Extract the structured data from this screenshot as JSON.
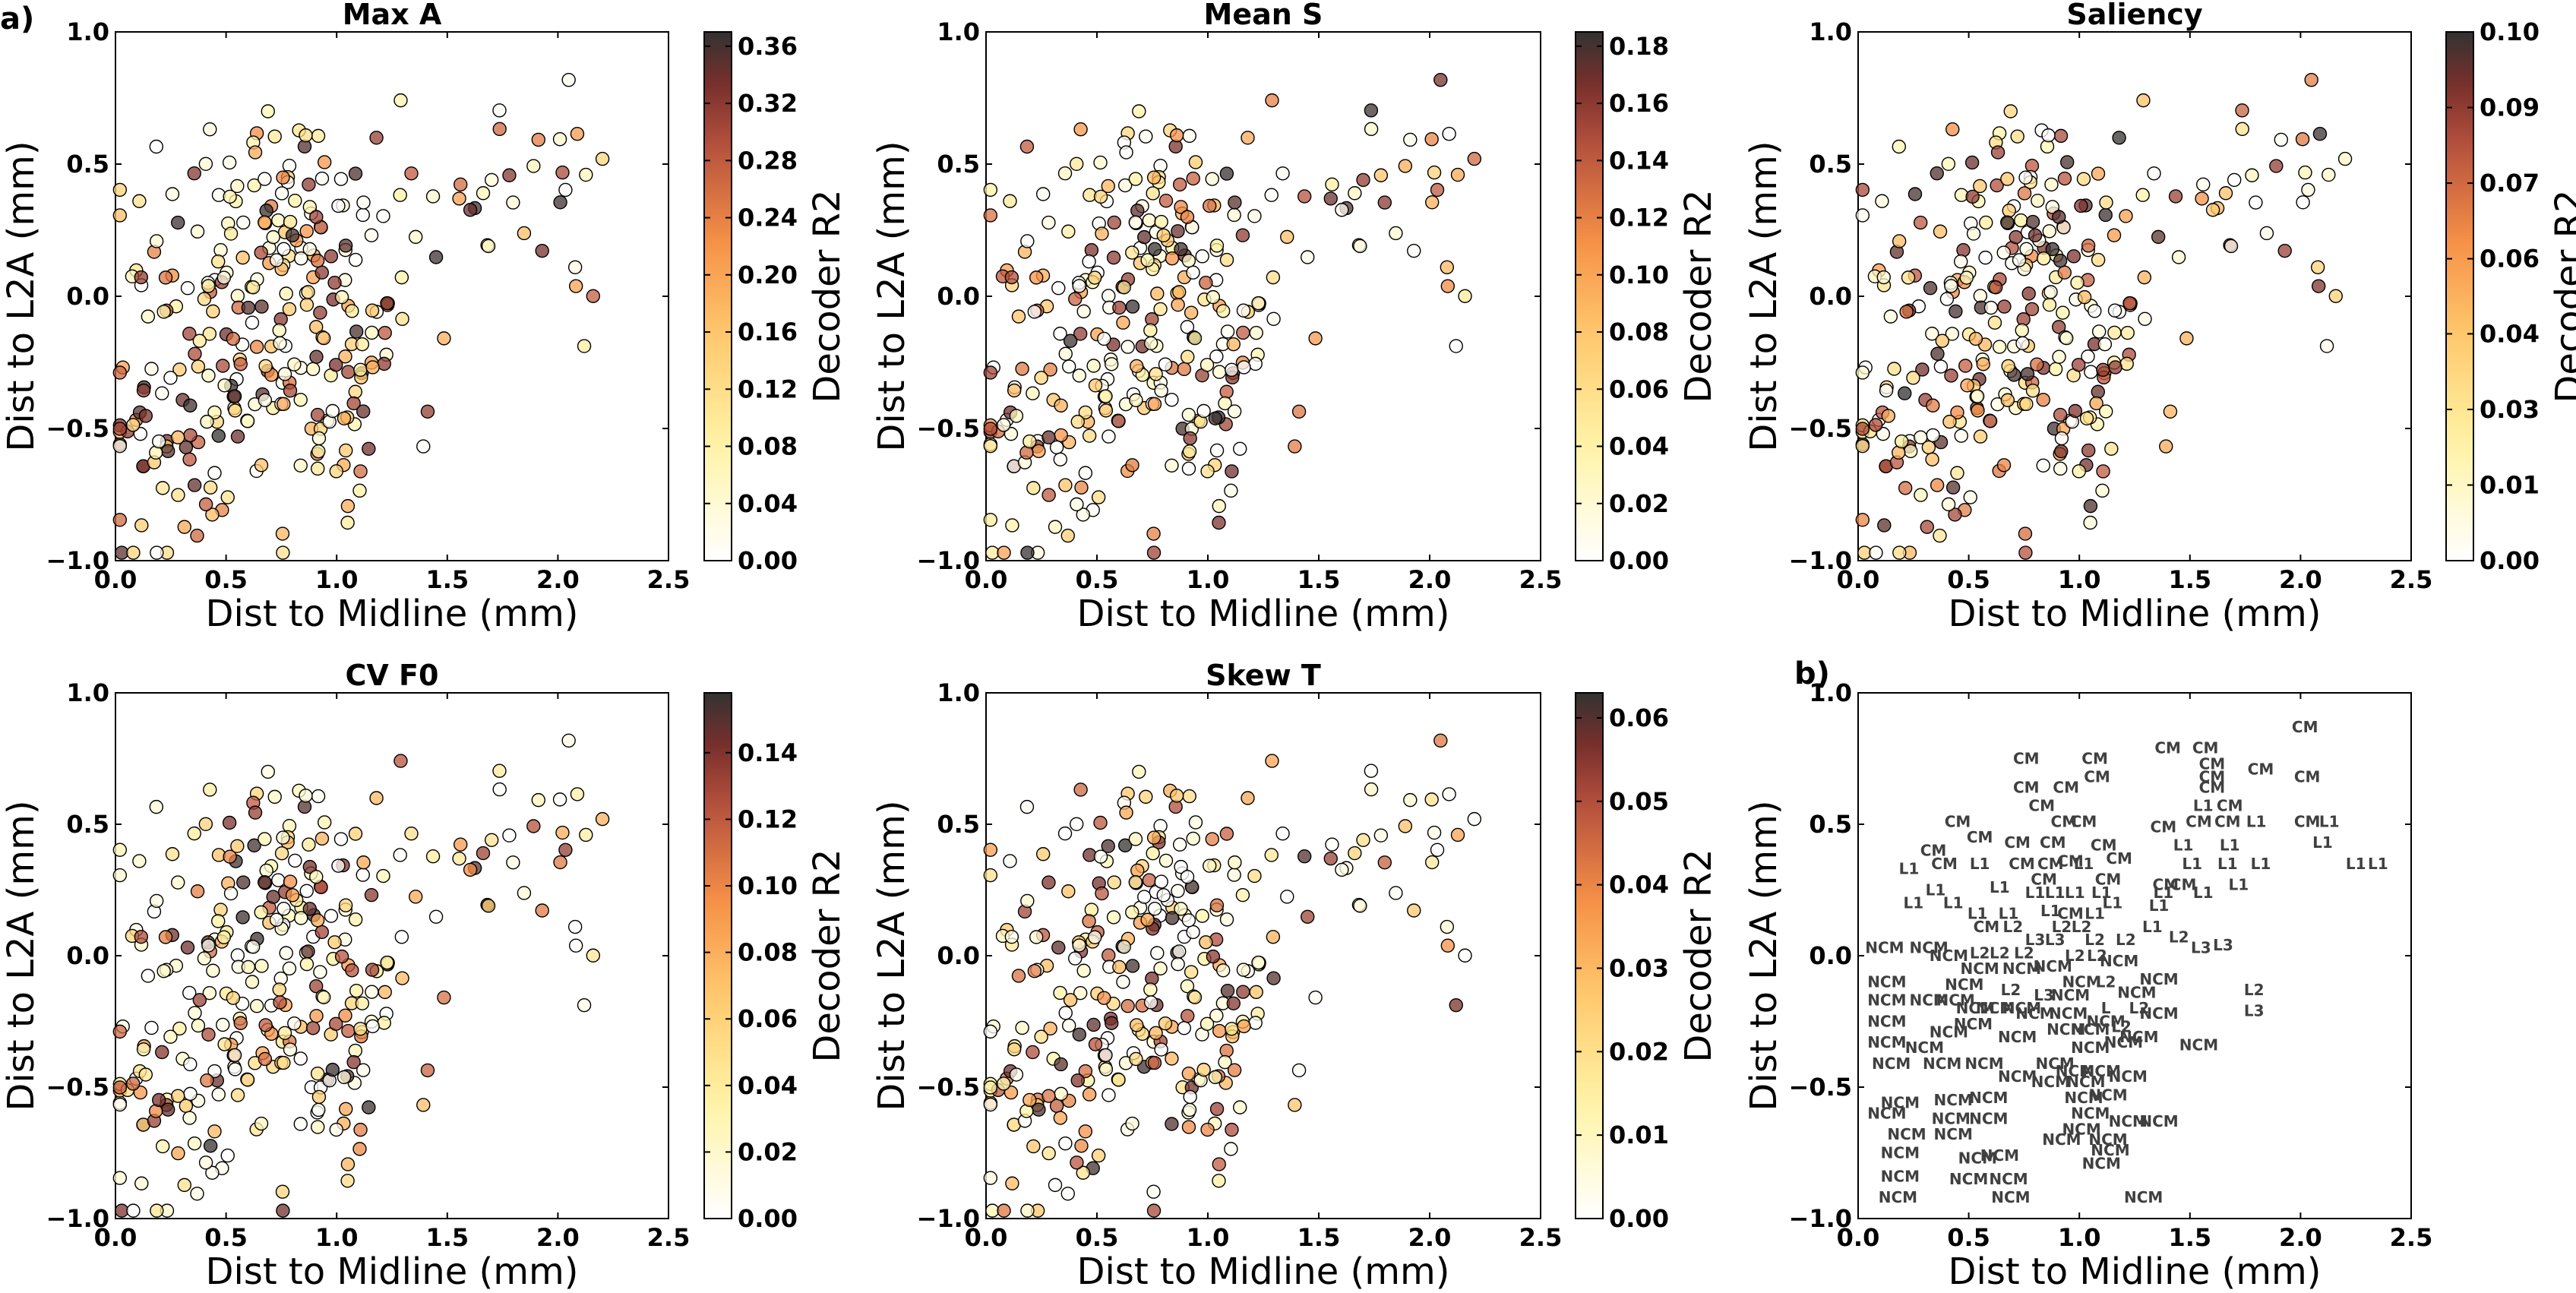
{
  "figure": {
    "panel_labels": [
      "a)",
      "b)"
    ]
  },
  "chart_data": [
    {
      "type": "scatter",
      "title": "Max A",
      "xlabel": "Dist to Midline (mm)",
      "ylabel": "Dist to L2A (mm)",
      "xlim": [
        0.0,
        2.5
      ],
      "ylim": [
        -1.0,
        1.0
      ],
      "xticks": [
        "0.0",
        "0.5",
        "1.0",
        "1.5",
        "2.0",
        "2.5"
      ],
      "yticks": [
        "−1.0",
        "−0.5",
        "0.0",
        "0.5",
        "1.0"
      ],
      "colorbar": {
        "label": "Decoder R2",
        "min": 0.0,
        "max": 0.37,
        "ticks": [
          "0.00",
          "0.04",
          "0.08",
          "0.12",
          "0.16",
          "0.20",
          "0.24",
          "0.28",
          "0.32",
          "0.36"
        ],
        "tick_values": [
          0,
          0.04,
          0.08,
          0.12,
          0.16,
          0.2,
          0.24,
          0.28,
          0.32,
          0.36
        ],
        "colormap": "afmhot_r"
      },
      "seed": 11
    },
    {
      "type": "scatter",
      "title": "Mean S",
      "xlabel": "Dist to Midline (mm)",
      "ylabel": "Dist to L2A (mm)",
      "xlim": [
        0.0,
        2.5
      ],
      "ylim": [
        -1.0,
        1.0
      ],
      "xticks": [
        "0.0",
        "0.5",
        "1.0",
        "1.5",
        "2.0",
        "2.5"
      ],
      "yticks": [
        "−1.0",
        "−0.5",
        "0.0",
        "0.5",
        "1.0"
      ],
      "colorbar": {
        "label": "Decoder R2",
        "min": 0.0,
        "max": 0.185,
        "ticks": [
          "0.00",
          "0.02",
          "0.04",
          "0.06",
          "0.08",
          "0.10",
          "0.12",
          "0.14",
          "0.16",
          "0.18"
        ],
        "tick_values": [
          0,
          0.02,
          0.04,
          0.06,
          0.08,
          0.1,
          0.12,
          0.14,
          0.16,
          0.18
        ],
        "colormap": "afmhot_r"
      },
      "seed": 23
    },
    {
      "type": "scatter",
      "title": "Saliency",
      "xlabel": "Dist to Midline (mm)",
      "ylabel": "Dist to L2A (mm)",
      "xlim": [
        0.0,
        2.5
      ],
      "ylim": [
        -1.0,
        1.0
      ],
      "xticks": [
        "0.0",
        "0.5",
        "1.0",
        "1.5",
        "2.0",
        "2.5"
      ],
      "yticks": [
        "−1.0",
        "−0.5",
        "0.0",
        "0.5",
        "1.0"
      ],
      "colorbar": {
        "label": "Decoder R2",
        "min": 0.0,
        "max": 0.1,
        "ticks": [
          "0.00",
          "0.01",
          "0.03",
          "0.04",
          "0.06",
          "0.07",
          "0.09",
          "0.10"
        ],
        "tick_values": [
          0,
          0.0143,
          0.0286,
          0.0429,
          0.0571,
          0.0714,
          0.0857,
          0.1
        ],
        "colormap": "afmhot_r"
      },
      "seed": 37
    },
    {
      "type": "scatter",
      "title": "CV F0",
      "xlabel": "Dist to Midline (mm)",
      "ylabel": "Dist to L2A (mm)",
      "xlim": [
        0.0,
        2.5
      ],
      "ylim": [
        -1.0,
        1.0
      ],
      "xticks": [
        "0.0",
        "0.5",
        "1.0",
        "1.5",
        "2.0",
        "2.5"
      ],
      "yticks": [
        "−1.0",
        "−0.5",
        "0.0",
        "0.5",
        "1.0"
      ],
      "colorbar": {
        "label": "Decoder R2",
        "min": 0.0,
        "max": 0.158,
        "ticks": [
          "0.00",
          "0.02",
          "0.04",
          "0.06",
          "0.08",
          "0.10",
          "0.12",
          "0.14"
        ],
        "tick_values": [
          0,
          0.02,
          0.04,
          0.06,
          0.08,
          0.1,
          0.12,
          0.14
        ],
        "colormap": "afmhot_r"
      },
      "seed": 41
    },
    {
      "type": "scatter",
      "title": "Skew T",
      "xlabel": "Dist to Midline (mm)",
      "ylabel": "Dist to L2A (mm)",
      "xlim": [
        0.0,
        2.5
      ],
      "ylim": [
        -1.0,
        1.0
      ],
      "xticks": [
        "0.0",
        "0.5",
        "1.0",
        "1.5",
        "2.0",
        "2.5"
      ],
      "yticks": [
        "−1.0",
        "−0.5",
        "0.0",
        "0.5",
        "1.0"
      ],
      "colorbar": {
        "label": "Decoder R2",
        "min": 0.0,
        "max": 0.063,
        "ticks": [
          "0.00",
          "0.01",
          "0.02",
          "0.03",
          "0.04",
          "0.05",
          "0.06"
        ],
        "tick_values": [
          0,
          0.01,
          0.02,
          0.03,
          0.04,
          0.05,
          0.06
        ],
        "colormap": "afmhot_r"
      },
      "seed": 59
    },
    {
      "type": "scatter",
      "title": "",
      "xlabel": "Dist to Midline (mm)",
      "ylabel": "Dist to L2A (mm)",
      "xlim": [
        0.0,
        2.5
      ],
      "ylim": [
        -1.0,
        1.0
      ],
      "xticks": [
        "0.0",
        "0.5",
        "1.0",
        "1.5",
        "2.0",
        "2.5"
      ],
      "yticks": [
        "−1.0",
        "−0.5",
        "0.0",
        "0.5",
        "1.0"
      ],
      "labels": [
        {
          "x": 2.02,
          "y": 0.85,
          "t": "CM"
        },
        {
          "x": 1.4,
          "y": 0.77,
          "t": "CM"
        },
        {
          "x": 1.57,
          "y": 0.77,
          "t": "CM"
        },
        {
          "x": 0.76,
          "y": 0.73,
          "t": "CM"
        },
        {
          "x": 1.07,
          "y": 0.73,
          "t": "CM"
        },
        {
          "x": 1.6,
          "y": 0.71,
          "t": "CM"
        },
        {
          "x": 1.82,
          "y": 0.69,
          "t": "CM"
        },
        {
          "x": 1.08,
          "y": 0.66,
          "t": "CM"
        },
        {
          "x": 1.6,
          "y": 0.66,
          "t": "CM"
        },
        {
          "x": 2.03,
          "y": 0.66,
          "t": "CM"
        },
        {
          "x": 0.76,
          "y": 0.62,
          "t": "CM"
        },
        {
          "x": 0.94,
          "y": 0.62,
          "t": "CM"
        },
        {
          "x": 1.6,
          "y": 0.62,
          "t": "CM"
        },
        {
          "x": 1.56,
          "y": 0.55,
          "t": "L1"
        },
        {
          "x": 1.68,
          "y": 0.55,
          "t": "CM"
        },
        {
          "x": 0.83,
          "y": 0.55,
          "t": "CM"
        },
        {
          "x": 0.93,
          "y": 0.49,
          "t": "CM"
        },
        {
          "x": 1.02,
          "y": 0.49,
          "t": "CM"
        },
        {
          "x": 0.45,
          "y": 0.49,
          "t": "CM"
        },
        {
          "x": 1.38,
          "y": 0.47,
          "t": "CM"
        },
        {
          "x": 1.54,
          "y": 0.49,
          "t": "CM"
        },
        {
          "x": 1.67,
          "y": 0.49,
          "t": "CM"
        },
        {
          "x": 1.8,
          "y": 0.49,
          "t": "L1"
        },
        {
          "x": 2.03,
          "y": 0.49,
          "t": "CM"
        },
        {
          "x": 2.13,
          "y": 0.49,
          "t": "L1"
        },
        {
          "x": 0.34,
          "y": 0.38,
          "t": "CM"
        },
        {
          "x": 0.72,
          "y": 0.41,
          "t": "CM"
        },
        {
          "x": 0.88,
          "y": 0.41,
          "t": "CM"
        },
        {
          "x": 0.55,
          "y": 0.43,
          "t": "CM"
        },
        {
          "x": 1.11,
          "y": 0.4,
          "t": "CM"
        },
        {
          "x": 1.47,
          "y": 0.4,
          "t": "L1"
        },
        {
          "x": 1.68,
          "y": 0.4,
          "t": "L1"
        },
        {
          "x": 2.1,
          "y": 0.41,
          "t": "L1"
        },
        {
          "x": 0.39,
          "y": 0.33,
          "t": "CM"
        },
        {
          "x": 0.55,
          "y": 0.33,
          "t": "L1"
        },
        {
          "x": 0.74,
          "y": 0.33,
          "t": "CM"
        },
        {
          "x": 0.87,
          "y": 0.33,
          "t": "CM"
        },
        {
          "x": 0.96,
          "y": 0.34,
          "t": "CM"
        },
        {
          "x": 1.02,
          "y": 0.33,
          "t": "L1"
        },
        {
          "x": 1.18,
          "y": 0.35,
          "t": "CM"
        },
        {
          "x": 1.51,
          "y": 0.33,
          "t": "L1"
        },
        {
          "x": 1.67,
          "y": 0.33,
          "t": "L1"
        },
        {
          "x": 1.82,
          "y": 0.33,
          "t": "L1"
        },
        {
          "x": 2.25,
          "y": 0.33,
          "t": "L1"
        },
        {
          "x": 2.35,
          "y": 0.33,
          "t": "L1"
        },
        {
          "x": 0.23,
          "y": 0.31,
          "t": "L1"
        },
        {
          "x": 0.84,
          "y": 0.27,
          "t": "CM"
        },
        {
          "x": 1.13,
          "y": 0.27,
          "t": "CM"
        },
        {
          "x": 1.39,
          "y": 0.25,
          "t": "CM"
        },
        {
          "x": 1.47,
          "y": 0.25,
          "t": "CM"
        },
        {
          "x": 1.72,
          "y": 0.25,
          "t": "L1"
        },
        {
          "x": 0.35,
          "y": 0.23,
          "t": "L1"
        },
        {
          "x": 0.64,
          "y": 0.24,
          "t": "L1"
        },
        {
          "x": 0.8,
          "y": 0.22,
          "t": "L1"
        },
        {
          "x": 0.89,
          "y": 0.22,
          "t": "L1"
        },
        {
          "x": 0.98,
          "y": 0.22,
          "t": "L1"
        },
        {
          "x": 1.1,
          "y": 0.22,
          "t": "L1"
        },
        {
          "x": 1.38,
          "y": 0.22,
          "t": "L1"
        },
        {
          "x": 1.56,
          "y": 0.22,
          "t": "L1"
        },
        {
          "x": 0.25,
          "y": 0.18,
          "t": "L1"
        },
        {
          "x": 0.43,
          "y": 0.18,
          "t": "L1"
        },
        {
          "x": 1.15,
          "y": 0.18,
          "t": "L1"
        },
        {
          "x": 1.36,
          "y": 0.17,
          "t": "L1"
        },
        {
          "x": 0.54,
          "y": 0.14,
          "t": "L1"
        },
        {
          "x": 0.68,
          "y": 0.14,
          "t": "L1"
        },
        {
          "x": 0.87,
          "y": 0.15,
          "t": "L1"
        },
        {
          "x": 0.96,
          "y": 0.14,
          "t": "CM"
        },
        {
          "x": 1.07,
          "y": 0.14,
          "t": "L1"
        },
        {
          "x": 1.33,
          "y": 0.09,
          "t": "L1"
        },
        {
          "x": 0.58,
          "y": 0.09,
          "t": "CM"
        },
        {
          "x": 0.7,
          "y": 0.09,
          "t": "L2"
        },
        {
          "x": 0.92,
          "y": 0.09,
          "t": "L2"
        },
        {
          "x": 1.01,
          "y": 0.09,
          "t": "L2"
        },
        {
          "x": 1.45,
          "y": 0.05,
          "t": "L2"
        },
        {
          "x": 0.8,
          "y": 0.04,
          "t": "L3"
        },
        {
          "x": 0.89,
          "y": 0.04,
          "t": "L3"
        },
        {
          "x": 1.07,
          "y": 0.04,
          "t": "L2"
        },
        {
          "x": 1.21,
          "y": 0.04,
          "t": "L2"
        },
        {
          "x": 1.55,
          "y": 0.01,
          "t": "L3"
        },
        {
          "x": 1.65,
          "y": 0.02,
          "t": "L3"
        },
        {
          "x": 0.12,
          "y": 0.01,
          "t": "NCM"
        },
        {
          "x": 0.32,
          "y": 0.01,
          "t": "NCM"
        },
        {
          "x": 0.55,
          "y": -0.01,
          "t": "L2"
        },
        {
          "x": 0.64,
          "y": -0.01,
          "t": "L2"
        },
        {
          "x": 0.75,
          "y": -0.01,
          "t": "L2"
        },
        {
          "x": 0.98,
          "y": -0.02,
          "t": "L2"
        },
        {
          "x": 1.08,
          "y": -0.02,
          "t": "L2"
        },
        {
          "x": 0.41,
          "y": -0.02,
          "t": "NCM"
        },
        {
          "x": 0.88,
          "y": -0.06,
          "t": "NCM"
        },
        {
          "x": 1.18,
          "y": -0.04,
          "t": "NCM"
        },
        {
          "x": 0.55,
          "y": -0.07,
          "t": "NCM"
        },
        {
          "x": 0.74,
          "y": -0.07,
          "t": "NCM"
        },
        {
          "x": 0.13,
          "y": -0.12,
          "t": "NCM"
        },
        {
          "x": 0.48,
          "y": -0.13,
          "t": "NCM"
        },
        {
          "x": 1.01,
          "y": -0.12,
          "t": "NCM"
        },
        {
          "x": 1.12,
          "y": -0.12,
          "t": "L2"
        },
        {
          "x": 1.36,
          "y": -0.11,
          "t": "NCM"
        },
        {
          "x": 1.79,
          "y": -0.15,
          "t": "L2"
        },
        {
          "x": 0.69,
          "y": -0.15,
          "t": "L2"
        },
        {
          "x": 0.84,
          "y": -0.17,
          "t": "L3"
        },
        {
          "x": 0.96,
          "y": -0.17,
          "t": "NCM"
        },
        {
          "x": 1.26,
          "y": -0.16,
          "t": "NCM"
        },
        {
          "x": 0.13,
          "y": -0.19,
          "t": "NCM"
        },
        {
          "x": 0.32,
          "y": -0.19,
          "t": "NCM"
        },
        {
          "x": 0.44,
          "y": -0.19,
          "t": "NCM"
        },
        {
          "x": 0.53,
          "y": -0.22,
          "t": "NCM"
        },
        {
          "x": 0.62,
          "y": -0.22,
          "t": "NCM"
        },
        {
          "x": 0.74,
          "y": -0.22,
          "t": "NCM"
        },
        {
          "x": 0.8,
          "y": -0.24,
          "t": "NCM"
        },
        {
          "x": 1.12,
          "y": -0.22,
          "t": "L"
        },
        {
          "x": 1.27,
          "y": -0.22,
          "t": "L2"
        },
        {
          "x": 1.36,
          "y": -0.24,
          "t": "NCM"
        },
        {
          "x": 1.79,
          "y": -0.23,
          "t": "L3"
        },
        {
          "x": 0.95,
          "y": -0.24,
          "t": "NCM"
        },
        {
          "x": 1.12,
          "y": -0.27,
          "t": "NCM"
        },
        {
          "x": 0.13,
          "y": -0.27,
          "t": "NCM"
        },
        {
          "x": 0.52,
          "y": -0.28,
          "t": "NCM"
        },
        {
          "x": 0.94,
          "y": -0.3,
          "t": "NCM"
        },
        {
          "x": 1.05,
          "y": -0.3,
          "t": "NCM"
        },
        {
          "x": 1.19,
          "y": -0.29,
          "t": "L2"
        },
        {
          "x": 0.41,
          "y": -0.31,
          "t": "NCM"
        },
        {
          "x": 0.72,
          "y": -0.33,
          "t": "NCM"
        },
        {
          "x": 1.27,
          "y": -0.33,
          "t": "NCM"
        },
        {
          "x": 0.13,
          "y": -0.35,
          "t": "NCM"
        },
        {
          "x": 0.3,
          "y": -0.37,
          "t": "NCM"
        },
        {
          "x": 1.05,
          "y": -0.37,
          "t": "NCM"
        },
        {
          "x": 1.2,
          "y": -0.35,
          "t": "NCM"
        },
        {
          "x": 1.54,
          "y": -0.36,
          "t": "NCM"
        },
        {
          "x": 0.15,
          "y": -0.43,
          "t": "NCM"
        },
        {
          "x": 0.38,
          "y": -0.43,
          "t": "NCM"
        },
        {
          "x": 0.57,
          "y": -0.43,
          "t": "NCM"
        },
        {
          "x": 0.89,
          "y": -0.43,
          "t": "NCM"
        },
        {
          "x": 0.98,
          "y": -0.46,
          "t": "NCM"
        },
        {
          "x": 1.1,
          "y": -0.46,
          "t": "NCM"
        },
        {
          "x": 0.72,
          "y": -0.48,
          "t": "NCM"
        },
        {
          "x": 0.87,
          "y": -0.5,
          "t": "NCM"
        },
        {
          "x": 1.03,
          "y": -0.5,
          "t": "NCM"
        },
        {
          "x": 1.22,
          "y": -0.48,
          "t": "NCM"
        },
        {
          "x": 1.02,
          "y": -0.56,
          "t": "NCM"
        },
        {
          "x": 1.13,
          "y": -0.55,
          "t": "NCM"
        },
        {
          "x": 0.59,
          "y": -0.56,
          "t": "NCM"
        },
        {
          "x": 0.43,
          "y": -0.57,
          "t": "NCM"
        },
        {
          "x": 0.19,
          "y": -0.58,
          "t": "NCM"
        },
        {
          "x": 0.42,
          "y": -0.64,
          "t": "NCM"
        },
        {
          "x": 0.59,
          "y": -0.64,
          "t": "NCM"
        },
        {
          "x": 1.22,
          "y": -0.65,
          "t": "NCM"
        },
        {
          "x": 0.13,
          "y": -0.62,
          "t": "NCM"
        },
        {
          "x": 1.36,
          "y": -0.65,
          "t": "NCM"
        },
        {
          "x": 1.05,
          "y": -0.62,
          "t": "NCM"
        },
        {
          "x": 1.01,
          "y": -0.68,
          "t": "NCM"
        },
        {
          "x": 0.92,
          "y": -0.72,
          "t": "NCM"
        },
        {
          "x": 1.13,
          "y": -0.72,
          "t": "NCM"
        },
        {
          "x": 0.22,
          "y": -0.7,
          "t": "NCM"
        },
        {
          "x": 0.43,
          "y": -0.7,
          "t": "NCM"
        },
        {
          "x": 1.1,
          "y": -0.81,
          "t": "NCM"
        },
        {
          "x": 0.19,
          "y": -0.77,
          "t": "NCM"
        },
        {
          "x": 0.54,
          "y": -0.79,
          "t": "NCM"
        },
        {
          "x": 1.14,
          "y": -0.76,
          "t": "NCM"
        },
        {
          "x": 0.64,
          "y": -0.78,
          "t": "NCM"
        },
        {
          "x": 0.19,
          "y": -0.86,
          "t": "NCM"
        },
        {
          "x": 0.5,
          "y": -0.87,
          "t": "NCM"
        },
        {
          "x": 0.68,
          "y": -0.87,
          "t": "NCM"
        },
        {
          "x": 0.18,
          "y": -0.94,
          "t": "NCM"
        },
        {
          "x": 0.69,
          "y": -0.94,
          "t": "NCM"
        },
        {
          "x": 1.29,
          "y": -0.94,
          "t": "NCM"
        }
      ]
    }
  ]
}
